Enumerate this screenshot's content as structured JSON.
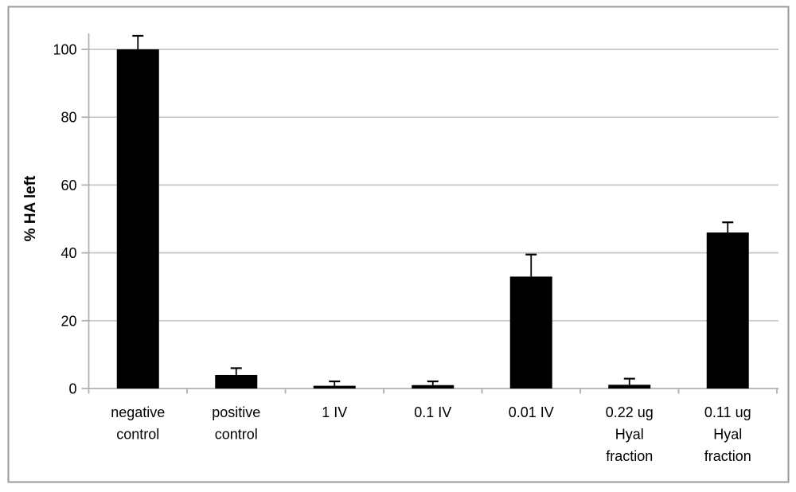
{
  "chart_data": {
    "type": "bar",
    "title": "",
    "xlabel": "",
    "ylabel": "% HA left",
    "ylim": [
      0,
      100
    ],
    "yticks": [
      0,
      20,
      40,
      60,
      80,
      100
    ],
    "grid": true,
    "legend": false,
    "categories": [
      "negative control",
      "positive control",
      "1 IV",
      "0.1 IV",
      "0.01 IV",
      "0.22 ug Hyal fraction",
      "0.11 ug Hyal fraction"
    ],
    "category_lines": [
      [
        "negative",
        "control"
      ],
      [
        "positive",
        "control"
      ],
      [
        "1 IV"
      ],
      [
        "0.1 IV"
      ],
      [
        "0.01 IV"
      ],
      [
        "0.22 ug",
        "Hyal",
        "fraction"
      ],
      [
        "0.11 ug",
        "Hyal",
        "fraction"
      ]
    ],
    "values": [
      100,
      4,
      0.8,
      1,
      33,
      1.1,
      46
    ],
    "error_plus": [
      4,
      2,
      1.3,
      1.1,
      6.5,
      1.8,
      3
    ]
  },
  "colors": {
    "bar": "#000000",
    "error_bar": "#000000",
    "gridline": "#c6c6c6",
    "axis": "#b0b0b0",
    "frame_border": "#9a9a9a",
    "text": "#000000",
    "background": "#ffffff"
  }
}
